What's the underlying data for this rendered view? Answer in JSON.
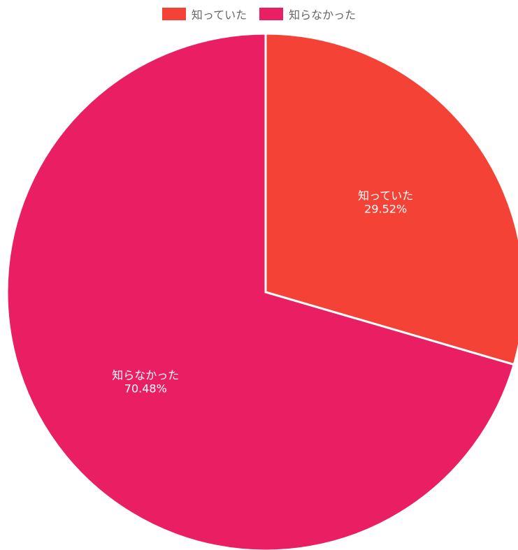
{
  "chart_data": {
    "type": "pie",
    "legend_position": "top",
    "categories": [
      "知っていた",
      "知らなかった"
    ],
    "values": [
      29.52,
      70.48
    ],
    "value_labels": [
      "29.52%",
      "70.48%"
    ],
    "colors": [
      "#f44336",
      "#e91e63"
    ]
  }
}
